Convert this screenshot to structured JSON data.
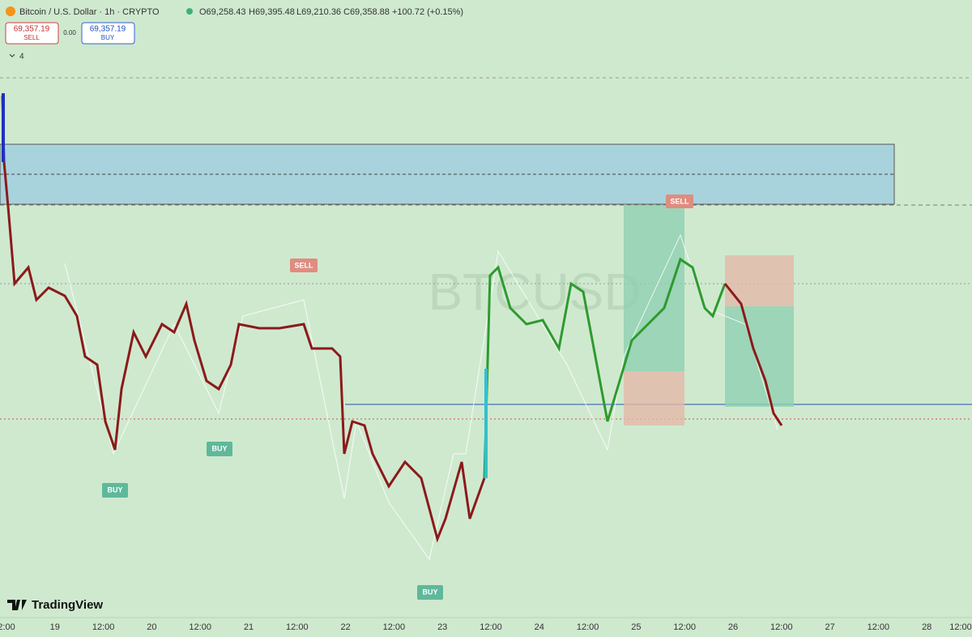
{
  "header": {
    "symbol": "Bitcoin / U.S. Dollar · 1h · CRYPTO",
    "open": "O69,258.43",
    "high": "H69,395.48",
    "low": "L69,210.36",
    "close": "C69,358.88",
    "change": "+100.72 (+0.15%)"
  },
  "order_panel": {
    "sell_price": "69,357.19",
    "sell": "SELL",
    "spread": "0.00",
    "buy_price": "69,357.19",
    "buy": "BUY"
  },
  "indicators_toggle": "4",
  "signals": [
    "SELL",
    "SELL",
    "BUY",
    "BUY",
    "BUY"
  ],
  "watermark": "BTCUSD",
  "branding": "TradingView",
  "time_axis": [
    "2:00",
    "19",
    "12:00",
    "20",
    "12:00",
    "21",
    "12:00",
    "22",
    "12:00",
    "23",
    "12:00",
    "24",
    "12:00",
    "25",
    "12:00",
    "26",
    "12:00",
    "27",
    "12:00",
    "28",
    "12:00"
  ]
}
